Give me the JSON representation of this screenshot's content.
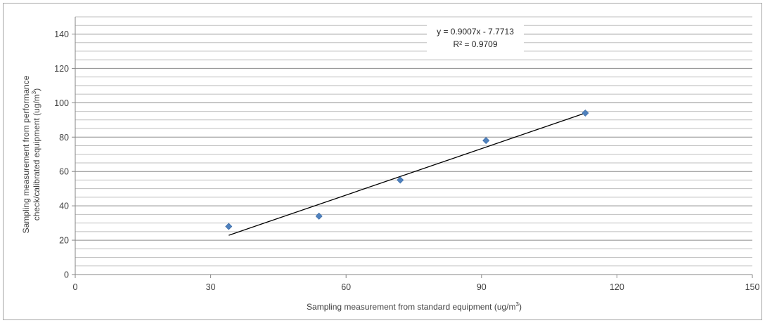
{
  "chart_data": {
    "type": "scatter",
    "title": "",
    "xlabel": "Sampling measurement from standard equipment  (ug/m",
    "xlabel_sup": "3",
    "xlabel_tail": ")",
    "ylabel_line1": "Sampling measurement from performance",
    "ylabel_line2": "check/calibrated equipment (ug/m",
    "ylabel_sup": "3",
    "ylabel_tail": ")",
    "xlim": [
      0,
      150
    ],
    "ylim": [
      0,
      150
    ],
    "x_ticks": [
      0,
      30,
      60,
      90,
      120,
      150
    ],
    "y_ticks": [
      0,
      20,
      40,
      60,
      80,
      100,
      120,
      140
    ],
    "grid": "horizontal major and minor",
    "series": [
      {
        "marker": "diamond",
        "color": "#4f81bd",
        "x": [
          34,
          54,
          72,
          91,
          113
        ],
        "y": [
          28,
          34,
          55,
          78,
          94
        ]
      }
    ],
    "trendline": {
      "type": "linear",
      "slope": 0.9007,
      "intercept": -7.7713,
      "x_range": [
        34,
        113
      ],
      "color": "#000000",
      "equation_label": "y = 0.9007x - 7.7713",
      "r2_label": "R² = 0.9709"
    }
  }
}
